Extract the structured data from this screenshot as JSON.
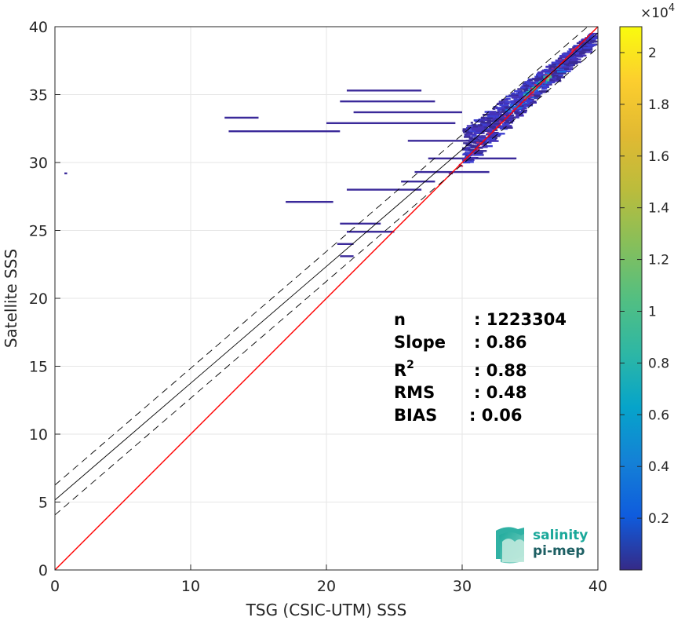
{
  "chart_data": {
    "type": "heatmap",
    "title": "",
    "xlabel": "TSG (CSIC-UTM) SSS",
    "ylabel": "Satellite SSS",
    "xlim": [
      0,
      40
    ],
    "ylim": [
      0,
      40
    ],
    "xticks": [
      0,
      10,
      20,
      30,
      40
    ],
    "yticks": [
      0,
      5,
      10,
      15,
      20,
      25,
      30,
      35,
      40
    ],
    "grid": true,
    "colorbar": {
      "range": [
        0,
        21000
      ],
      "ticks": [
        0.2,
        0.4,
        0.6,
        0.8,
        1,
        1.2,
        1.4,
        1.6,
        1.8,
        2
      ],
      "tick_labels": [
        "0.2",
        "0.4",
        "0.6",
        "0.8",
        "1",
        "1.2",
        "1.4",
        "1.6",
        "1.8",
        "2"
      ],
      "multiplier_prefix": "×10",
      "multiplier_exp": "4",
      "colormap": "parula"
    },
    "lines": [
      {
        "kind": "identity",
        "color": "#ff0000",
        "slope": 1,
        "intercept": 0
      },
      {
        "kind": "regression",
        "color": "#000000",
        "style": "solid",
        "slope": 0.86,
        "intercept": 5.15
      },
      {
        "kind": "regression-plus",
        "color": "#000000",
        "style": "dashed",
        "slope": 0.86,
        "intercept": 6.25
      },
      {
        "kind": "regression-minus",
        "color": "#000000",
        "style": "dashed",
        "slope": 0.86,
        "intercept": 4.05
      }
    ],
    "density_streaks": [
      {
        "x0": 12.5,
        "x1": 15.0,
        "y": 33.3
      },
      {
        "x0": 12.8,
        "x1": 21.0,
        "y": 32.3
      },
      {
        "x0": 17.0,
        "x1": 20.5,
        "y": 27.1
      },
      {
        "x0": 21.5,
        "x1": 27.0,
        "y": 28.0
      },
      {
        "x0": 21.0,
        "x1": 24.0,
        "y": 25.5
      },
      {
        "x0": 21.5,
        "x1": 25.0,
        "y": 24.9
      },
      {
        "x0": 20.8,
        "x1": 22.0,
        "y": 24.0
      },
      {
        "x0": 21.0,
        "x1": 22.0,
        "y": 23.1
      },
      {
        "x0": 21.5,
        "x1": 27.0,
        "y": 35.3
      },
      {
        "x0": 21.0,
        "x1": 28.0,
        "y": 34.5
      },
      {
        "x0": 22.0,
        "x1": 30.0,
        "y": 33.7
      },
      {
        "x0": 20.0,
        "x1": 29.5,
        "y": 32.9
      },
      {
        "x0": 26.0,
        "x1": 31.0,
        "y": 31.6
      },
      {
        "x0": 27.5,
        "x1": 34.0,
        "y": 30.3
      },
      {
        "x0": 26.5,
        "x1": 32.0,
        "y": 29.3
      },
      {
        "x0": 25.5,
        "x1": 28.0,
        "y": 28.6
      },
      {
        "x0": 0.7,
        "x1": 0.9,
        "y": 29.2
      }
    ],
    "stats": [
      {
        "label": "n",
        "sup": "",
        "value": ": 1223304"
      },
      {
        "label": "Slope",
        "sup": "",
        "value": ": 0.86"
      },
      {
        "label": "R",
        "sup": "2",
        "value": ": 0.88"
      },
      {
        "label": "RMS",
        "sup": "",
        "value": ": 0.48"
      },
      {
        "label": "BIAS",
        "sup": "",
        "value": ": 0.06"
      }
    ]
  },
  "logo": {
    "line1": "salinity",
    "line2": "pi-mep",
    "color1": "#1aa89a",
    "color2": "#1d5f63"
  }
}
